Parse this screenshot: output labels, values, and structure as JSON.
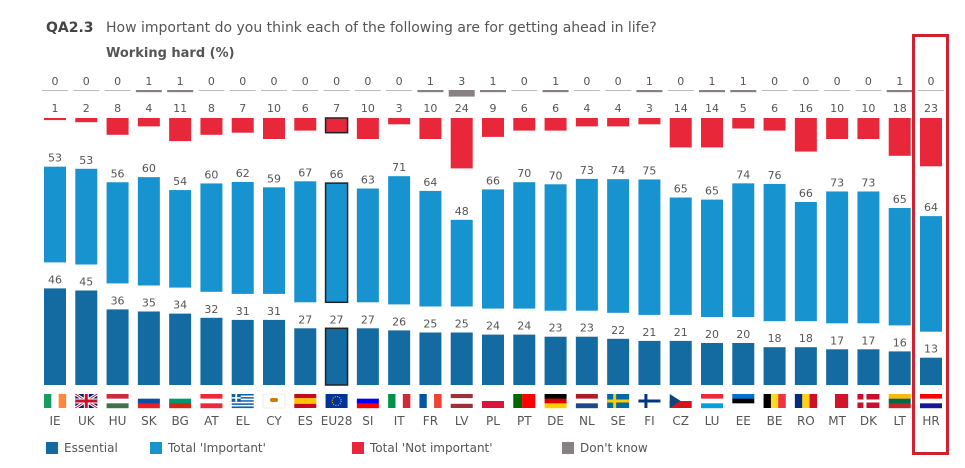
{
  "header": {
    "code": "QA2.3",
    "question": "How important do you think each of the following are for getting ahead in life?",
    "subtitle": "Working hard  (%)"
  },
  "colors": {
    "essential": "#146ba1",
    "important": "#1794d0",
    "not_important": "#e8283a",
    "dont_know": "#888084",
    "highlight": "#d0212f"
  },
  "legend": [
    {
      "key": "essential",
      "label": "Essential"
    },
    {
      "key": "important",
      "label": "Total 'Important'"
    },
    {
      "key": "not_important",
      "label": "Total 'Not important'"
    },
    {
      "key": "dont_know",
      "label": "Don't know"
    }
  ],
  "chart_data": {
    "type": "bar",
    "title": "QA2.3 How important do you think each of the following are for getting ahead in life? Working hard (%)",
    "xlabel": "",
    "ylabel": "%",
    "highlighted_category": "HR",
    "categories": [
      "IE",
      "UK",
      "HU",
      "SK",
      "BG",
      "AT",
      "EL",
      "CY",
      "ES",
      "EU28",
      "SI",
      "IT",
      "FR",
      "LV",
      "PL",
      "PT",
      "DE",
      "NL",
      "SE",
      "FI",
      "CZ",
      "LU",
      "EE",
      "BE",
      "RO",
      "MT",
      "DK",
      "LT",
      "HR"
    ],
    "series": [
      {
        "name": "Essential",
        "key": "essential",
        "values": [
          46,
          45,
          36,
          35,
          34,
          32,
          31,
          31,
          27,
          27,
          27,
          26,
          25,
          25,
          24,
          24,
          23,
          23,
          22,
          21,
          21,
          20,
          20,
          18,
          18,
          17,
          17,
          16,
          13
        ]
      },
      {
        "name": "Total 'Important'",
        "key": "important",
        "values": [
          53,
          53,
          56,
          60,
          54,
          60,
          62,
          59,
          67,
          66,
          63,
          71,
          64,
          48,
          66,
          70,
          70,
          73,
          74,
          75,
          65,
          65,
          74,
          76,
          66,
          73,
          73,
          65,
          64
        ]
      },
      {
        "name": "Total 'Not important'",
        "key": "not_important",
        "values": [
          1,
          2,
          8,
          4,
          11,
          8,
          7,
          10,
          6,
          7,
          10,
          3,
          10,
          24,
          9,
          6,
          6,
          4,
          4,
          3,
          14,
          14,
          5,
          6,
          16,
          10,
          10,
          18,
          23
        ]
      },
      {
        "name": "Don't know",
        "key": "dont_know",
        "values": [
          0,
          0,
          0,
          1,
          1,
          0,
          0,
          0,
          0,
          0,
          0,
          0,
          1,
          3,
          1,
          0,
          1,
          0,
          0,
          1,
          0,
          1,
          1,
          0,
          0,
          0,
          0,
          1,
          0
        ]
      }
    ]
  }
}
